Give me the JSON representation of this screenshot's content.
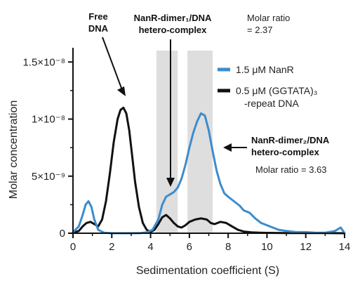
{
  "chart_data": {
    "type": "line",
    "xlabel": "Sedimentation coefficient (S)",
    "ylabel": "Molar concentration",
    "xlim": [
      0,
      14
    ],
    "ylim": [
      0,
      1.6e-08
    ],
    "x_ticks": [
      0,
      2,
      4,
      6,
      8,
      10,
      12,
      14
    ],
    "y_ticks": [
      {
        "value": 0,
        "label": "0"
      },
      {
        "value": 5e-09,
        "label": "5×10⁻⁹"
      },
      {
        "value": 1e-08,
        "label": "1×10⁻⁸"
      },
      {
        "value": 1.5e-08,
        "label": "1.5×10⁻⁸"
      }
    ],
    "grid": false,
    "legend_position": "right",
    "shaded_regions": [
      [
        4.3,
        5.4
      ],
      [
        5.9,
        7.2
      ]
    ],
    "series": [
      {
        "name": "1.5 μM NanR",
        "color": "#3c8ccd",
        "x": [
          0,
          0.3,
          0.5,
          0.65,
          0.8,
          0.95,
          1.1,
          1.3,
          1.6,
          2.0,
          2.5,
          3.0,
          3.5,
          3.8,
          4.1,
          4.4,
          4.6,
          4.8,
          5.0,
          5.2,
          5.4,
          5.6,
          5.8,
          6.0,
          6.2,
          6.4,
          6.6,
          6.8,
          7.0,
          7.2,
          7.4,
          7.6,
          7.8,
          8.0,
          8.3,
          8.6,
          8.8,
          9.1,
          9.4,
          9.7,
          10.0,
          10.3,
          10.6,
          11.0,
          11.5,
          12.0,
          12.5,
          13.0,
          13.5,
          13.8,
          14.0
        ],
        "values": [
          1e-10,
          6e-10,
          1.6e-09,
          2.5e-09,
          2.8e-09,
          2.3e-09,
          1.2e-09,
          3e-10,
          5e-11,
          0,
          0,
          0,
          2e-11,
          8e-11,
          3e-10,
          1.2e-09,
          2.5e-09,
          3.2e-09,
          3.4e-09,
          3.6e-09,
          4e-09,
          4.8e-09,
          6e-09,
          7.5e-09,
          8.8e-09,
          9.8e-09,
          1.05e-08,
          1.03e-08,
          9e-09,
          7.2e-09,
          5.5e-09,
          4.3e-09,
          3.5e-09,
          3.2e-09,
          2.8e-09,
          2.4e-09,
          2e-09,
          1.8e-09,
          1.3e-09,
          9e-10,
          7e-10,
          5e-10,
          3e-10,
          2e-10,
          1e-10,
          1e-10,
          5e-11,
          5e-11,
          2e-10,
          5e-10,
          0
        ]
      },
      {
        "name": "0.5 μM (GGTATA)₃ -repeat DNA",
        "color": "#111111",
        "x": [
          0,
          0.3,
          0.5,
          0.7,
          0.9,
          1.1,
          1.3,
          1.5,
          1.7,
          1.9,
          2.1,
          2.3,
          2.45,
          2.6,
          2.75,
          2.9,
          3.05,
          3.2,
          3.4,
          3.6,
          3.8,
          4.0,
          4.2,
          4.4,
          4.6,
          4.8,
          5.0,
          5.2,
          5.4,
          5.6,
          5.8,
          6.0,
          6.3,
          6.6,
          6.9,
          7.1,
          7.3,
          7.6,
          7.9,
          8.2,
          8.5,
          8.8,
          9.2,
          9.6,
          10.0,
          11.0,
          12.0,
          13.0,
          14.0
        ],
        "values": [
          5e-11,
          2e-10,
          6e-10,
          9e-10,
          1e-09,
          8e-10,
          6e-10,
          1.2e-09,
          2.8e-09,
          5.2e-09,
          8e-09,
          1e-08,
          1.08e-08,
          1.1e-08,
          1.05e-08,
          9e-09,
          6.8e-09,
          4.5e-09,
          2.3e-09,
          9e-10,
          3e-10,
          1e-10,
          3e-10,
          8e-10,
          1.4e-09,
          1.6e-09,
          1.3e-09,
          9e-10,
          6e-10,
          5e-10,
          7e-10,
          1e-09,
          1.2e-09,
          1.3e-09,
          1.2e-09,
          9e-10,
          8e-10,
          1e-09,
          9e-10,
          6e-10,
          3e-10,
          1.5e-10,
          8e-11,
          5e-11,
          3e-11,
          2e-11,
          1e-11,
          1e-11,
          0
        ]
      }
    ],
    "annotations": {
      "free_dna": "Free\nDNA",
      "dimer1_complex": "NanR-dimer₁/DNA\nhetero-complex",
      "molar_ratio_1": "Molar ratio\n= 2.37",
      "dimer2_complex": "NanR-dimer₂/DNA\nhetero-complex",
      "molar_ratio_2": "Molar ratio = 3.63"
    }
  }
}
